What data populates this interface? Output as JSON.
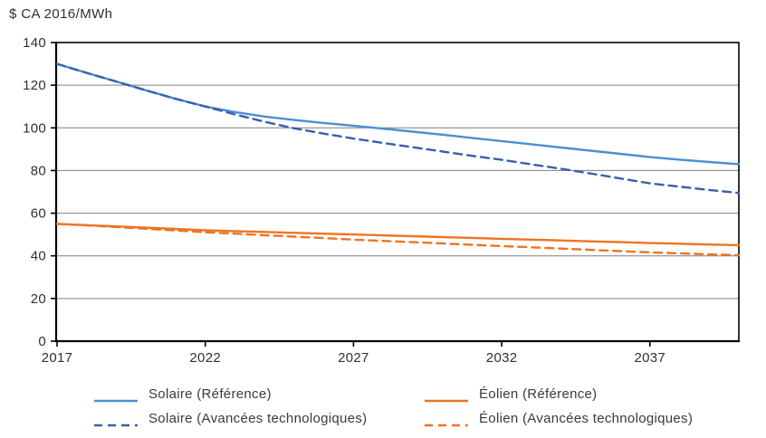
{
  "chart_data": {
    "type": "line",
    "title": "$ CA 2016/MWh",
    "xlabel": "",
    "ylabel": "$ CA 2016/MWh",
    "xlim": [
      2017,
      2040
    ],
    "ylim": [
      0,
      140
    ],
    "x_ticks": [
      2017,
      2022,
      2027,
      2032,
      2037
    ],
    "y_ticks": [
      0,
      20,
      40,
      60,
      80,
      100,
      120,
      140
    ],
    "grid": "horizontal",
    "legend_position": "bottom-two-columns",
    "x": [
      2017,
      2018,
      2019,
      2020,
      2021,
      2022,
      2023,
      2024,
      2025,
      2026,
      2027,
      2028,
      2029,
      2030,
      2031,
      2032,
      2033,
      2034,
      2035,
      2036,
      2037,
      2038,
      2039,
      2040
    ],
    "series": [
      {
        "name": "Solaire (Référence)",
        "color": "#4A90D2",
        "style": "solid",
        "values": [
          130,
          125.8,
          121.7,
          117.6,
          113.6,
          110,
          107.4,
          105.3,
          103.7,
          102.3,
          101,
          99.6,
          98.2,
          96.8,
          95.3,
          93.8,
          92.3,
          90.8,
          89.3,
          87.8,
          86.3,
          85.1,
          84,
          83
        ]
      },
      {
        "name": "Solaire (Avancées technologiques)",
        "color": "#3A5FAC",
        "style": "dashed",
        "values": [
          130,
          125.8,
          121.7,
          117.6,
          113.6,
          110,
          106.3,
          102.9,
          99.8,
          97.3,
          95,
          92.9,
          90.9,
          88.9,
          86.9,
          85,
          82.9,
          80.8,
          78.6,
          76.3,
          74,
          72.4,
          70.9,
          69.5
        ]
      },
      {
        "name": "Éolien (Référence)",
        "color": "#ED7423",
        "style": "solid",
        "values": [
          55,
          54.4,
          53.8,
          53.2,
          52.6,
          52,
          51.6,
          51.2,
          50.8,
          50.4,
          50,
          49.6,
          49.2,
          48.8,
          48.4,
          48,
          47.6,
          47.2,
          46.8,
          46.4,
          46,
          45.7,
          45.3,
          45
        ]
      },
      {
        "name": "Éolien (Avancées technologiques)",
        "color": "#ED7423",
        "style": "dashed",
        "values": [
          55,
          54.3,
          53.5,
          52.7,
          51.9,
          51.1,
          50.4,
          49.7,
          49,
          48.3,
          47.6,
          47,
          46.4,
          45.8,
          45.2,
          44.6,
          44,
          43.4,
          42.8,
          42.2,
          41.6,
          41.2,
          40.7,
          40.3
        ]
      }
    ],
    "colors": {
      "axis": "#000000",
      "grid": "#7F7F7F",
      "tick_text": "#303030"
    }
  }
}
